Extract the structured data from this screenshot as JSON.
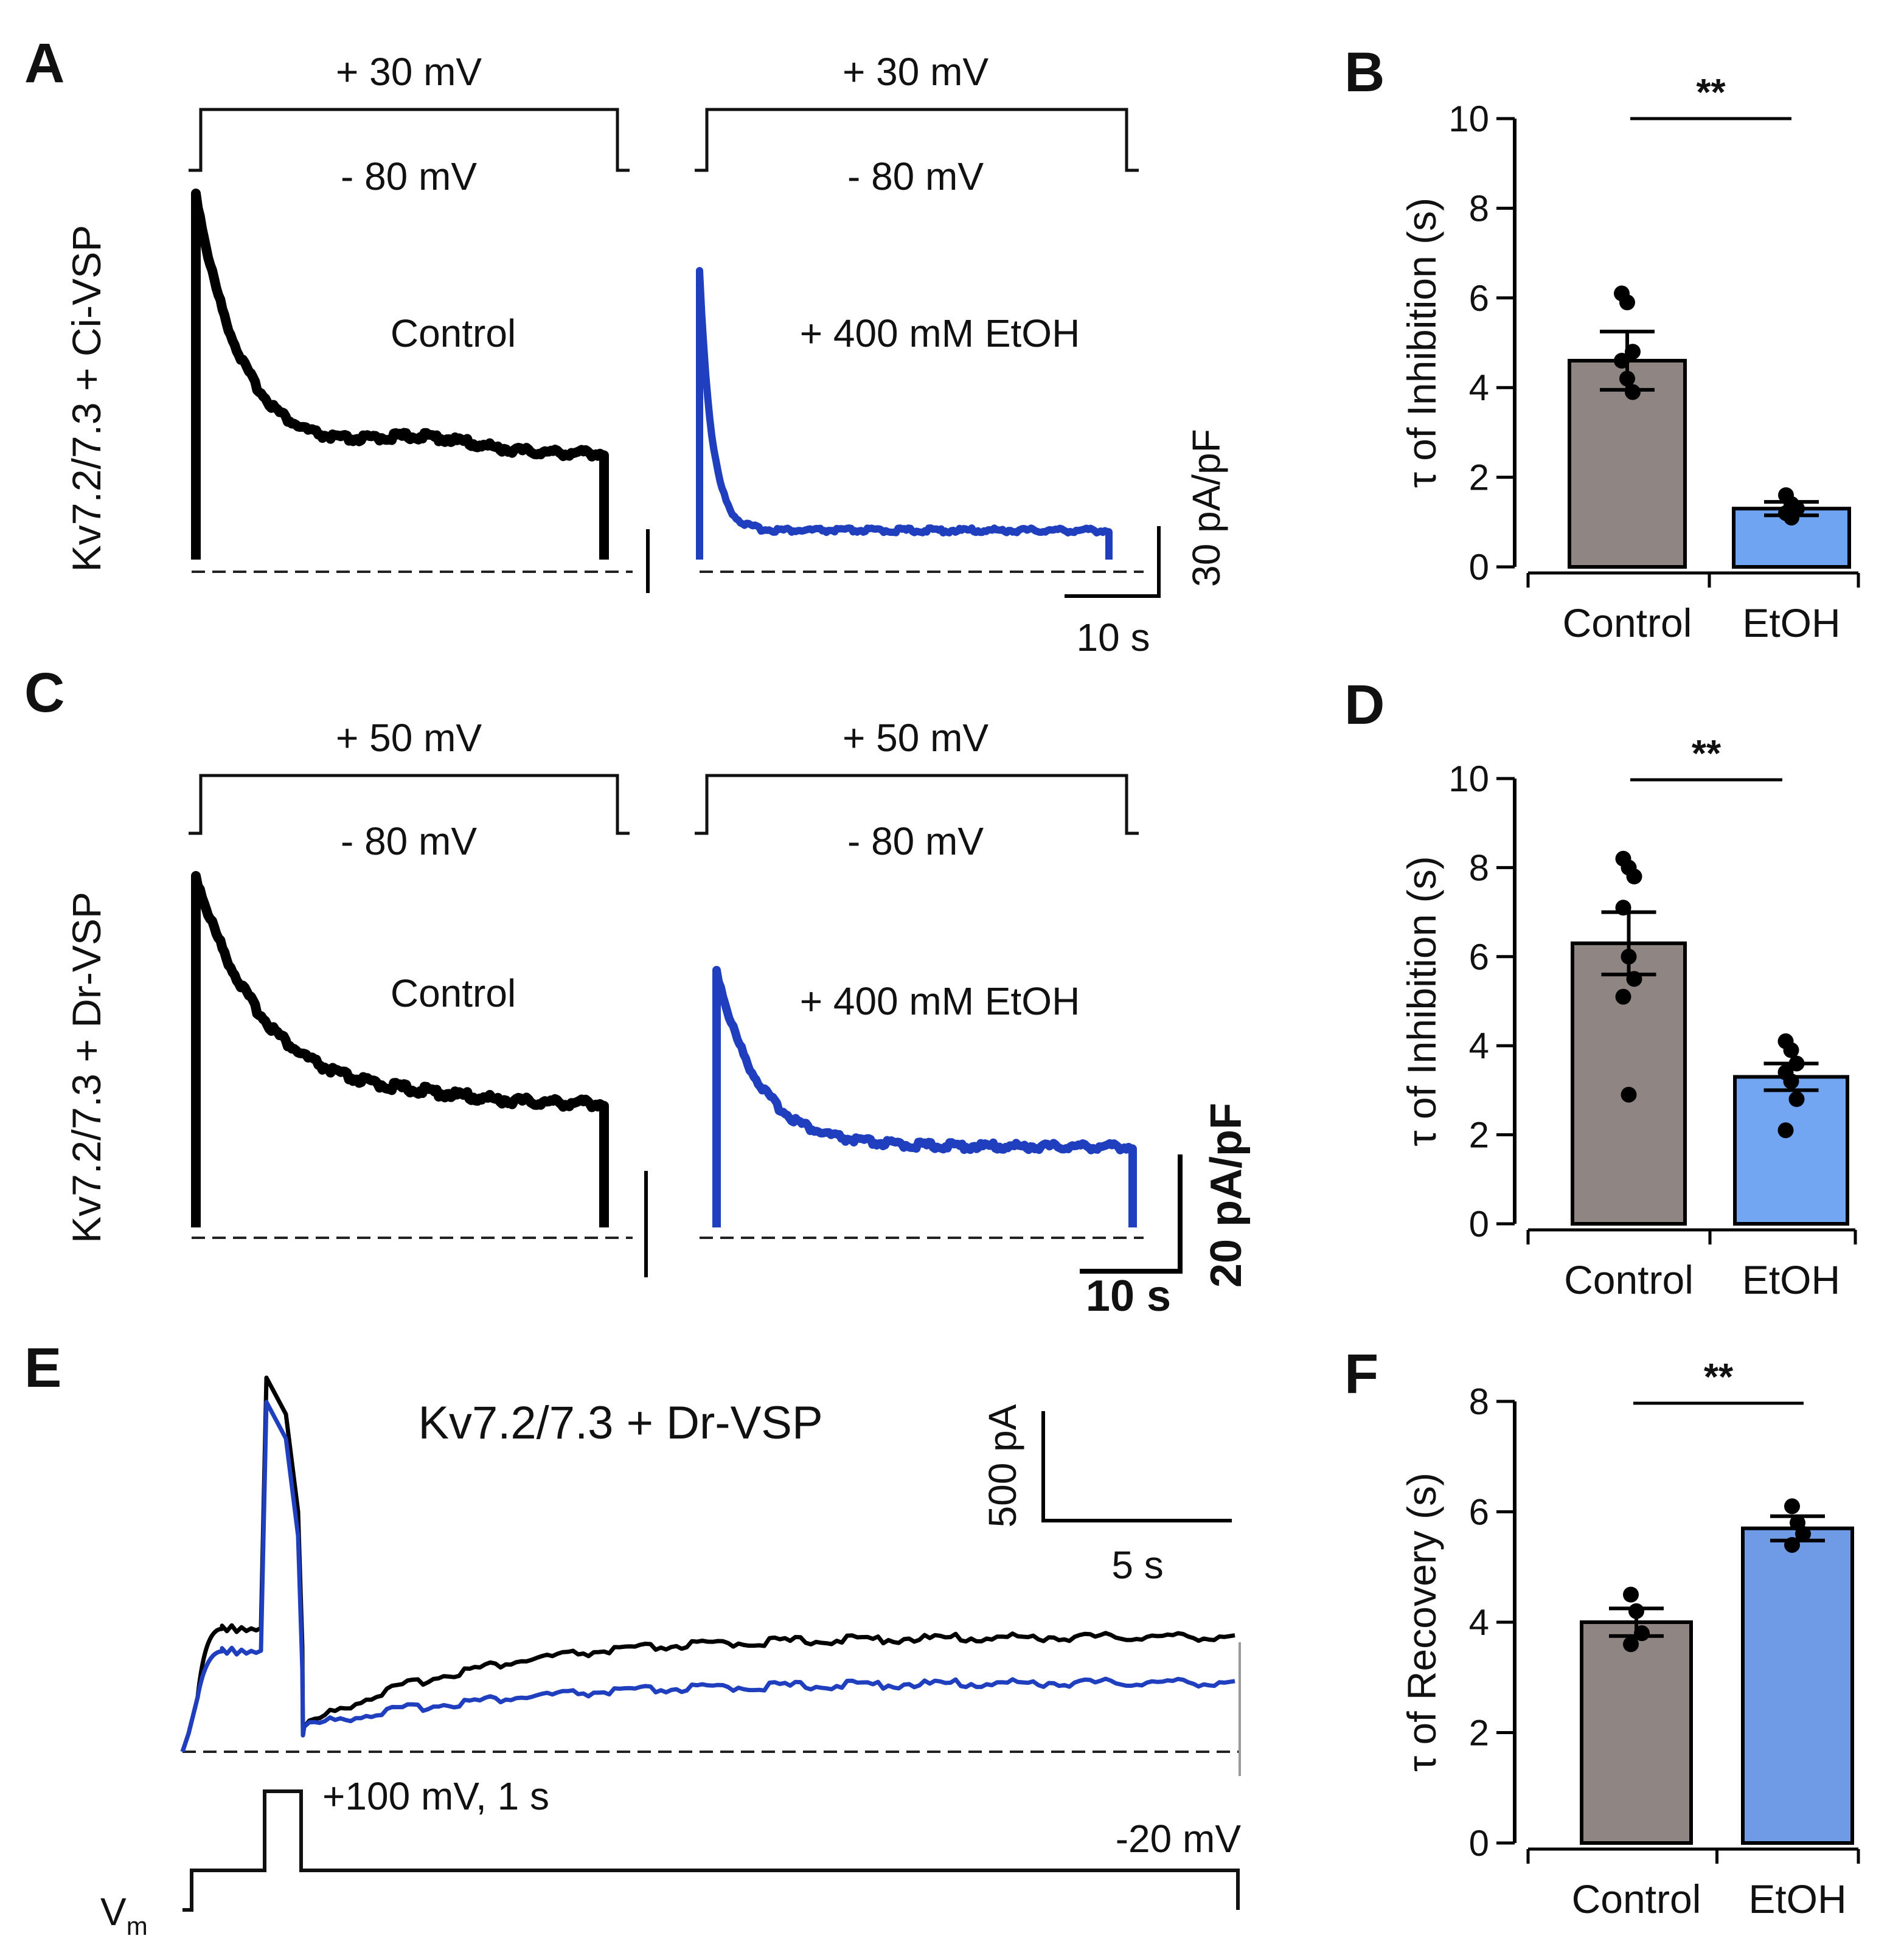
{
  "figure": {
    "panels": {
      "A": "A",
      "B": "B",
      "C": "C",
      "D": "D",
      "E": "E",
      "F": "F"
    },
    "row1": {
      "ylabel": "Kv7.2/7.3 + Ci-VSP",
      "left": {
        "step_high": "+ 30 mV",
        "step_low": "- 80 mV",
        "condition": "Control"
      },
      "right": {
        "step_high": "+ 30 mV",
        "step_low": "- 80 mV",
        "condition": "+ 400 mM EtOH"
      },
      "scale_y": "30 pA/pF",
      "scale_x": "10 s"
    },
    "row2": {
      "ylabel": "Kv7.2/7.3 + Dr-VSP",
      "left": {
        "step_high": "+ 50 mV",
        "step_low": "- 80 mV",
        "condition": "Control"
      },
      "right": {
        "step_high": "+ 50 mV",
        "step_low": "- 80 mV",
        "condition": "+ 400 mM EtOH"
      },
      "scale_y": "20 pA/pF",
      "scale_x": "10 s"
    },
    "row3": {
      "title": "Kv7.2/7.3 + Dr-VSP",
      "scale_y": "500 pA",
      "scale_x": "5 s",
      "pulse_label": "+100 mV, 1 s",
      "hold_label": "-20 mV",
      "vm_label": "V",
      "vm_sub": "m"
    },
    "colors": {
      "control_trace": "#000000",
      "etoh_trace": "#1f3fbf",
      "control_bar": "#8f8583",
      "etoh_bar_B": "#6ea4f2",
      "etoh_bar_D": "#72a5f2",
      "etoh_bar_F": "#6f9be6"
    }
  },
  "chart_data": [
    {
      "id": "B",
      "type": "bar",
      "categories": [
        "Control",
        "EtOH"
      ],
      "values": [
        4.6,
        1.3
      ],
      "errors": [
        0.65,
        0.15
      ],
      "points": [
        [
          6.1,
          5.9,
          4.8,
          4.6,
          4.2,
          3.9
        ],
        [
          1.6,
          1.4,
          1.3,
          1.2,
          1.1
        ]
      ],
      "ylabel": "τ of Inhibition (s)",
      "ylim": [
        0,
        10
      ],
      "yticks": [
        0,
        2,
        4,
        6,
        8,
        10
      ],
      "significance": "**"
    },
    {
      "id": "D",
      "type": "bar",
      "categories": [
        "Control",
        "EtOH"
      ],
      "values": [
        6.3,
        3.3
      ],
      "errors": [
        0.7,
        0.3
      ],
      "points": [
        [
          8.2,
          8.0,
          7.8,
          7.1,
          6.0,
          5.5,
          5.1,
          2.9
        ],
        [
          4.1,
          3.9,
          3.6,
          3.4,
          3.2,
          2.8,
          2.1
        ]
      ],
      "ylabel": "τ of Inhibition (s)",
      "ylim": [
        0,
        10
      ],
      "yticks": [
        0,
        2,
        4,
        6,
        8,
        10
      ],
      "significance": "**"
    },
    {
      "id": "F",
      "type": "bar",
      "categories": [
        "Control",
        "EtOH"
      ],
      "values": [
        4.0,
        5.7
      ],
      "errors": [
        0.25,
        0.22
      ],
      "points": [
        [
          4.5,
          4.2,
          3.8,
          3.6
        ],
        [
          6.1,
          5.8,
          5.6,
          5.4
        ]
      ],
      "ylabel": "τ of Recovery (s)",
      "ylim": [
        0,
        8
      ],
      "yticks": [
        0,
        2,
        4,
        6,
        8
      ],
      "significance": "**"
    }
  ]
}
